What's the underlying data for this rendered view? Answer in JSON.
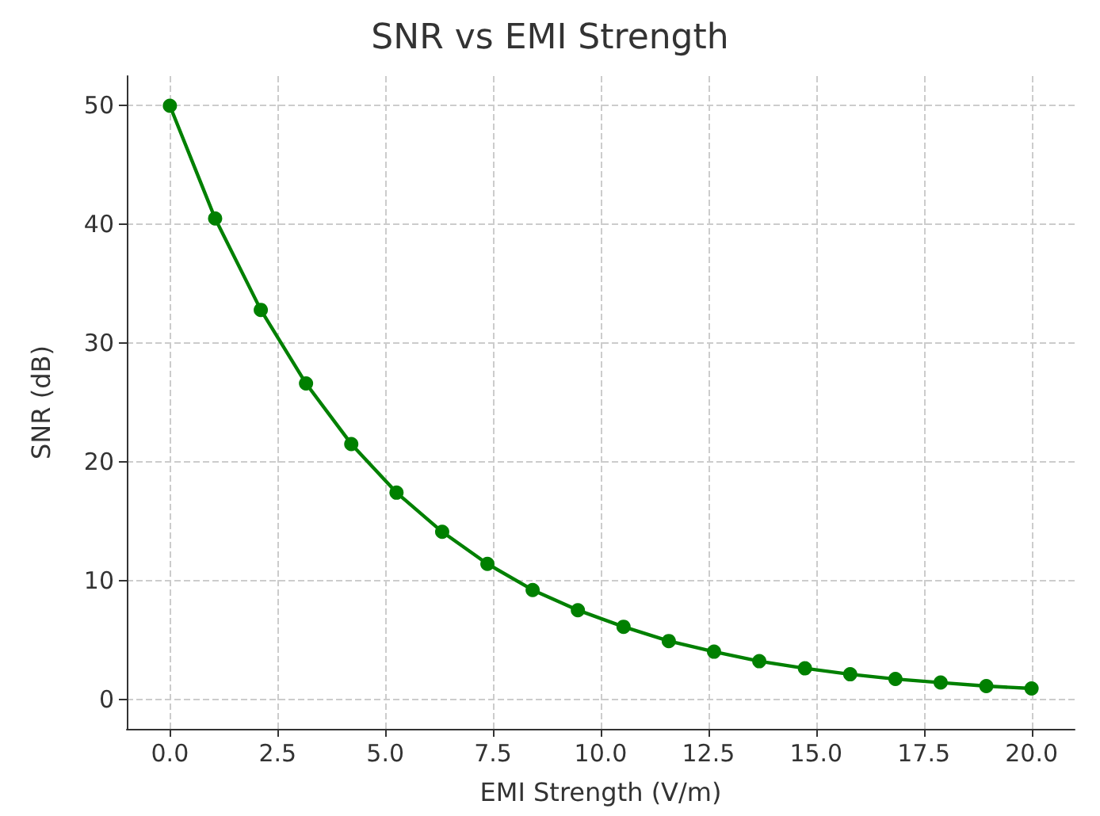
{
  "chart_data": {
    "type": "line",
    "title": "SNR vs EMI Strength",
    "xlabel": "EMI Strength (V/m)",
    "ylabel": "SNR (dB)",
    "x": [
      0,
      1.05,
      2.11,
      3.16,
      4.21,
      5.26,
      6.32,
      7.37,
      8.42,
      9.47,
      10.53,
      11.58,
      12.63,
      13.68,
      14.74,
      15.79,
      16.84,
      17.89,
      18.95,
      20
    ],
    "series": [
      {
        "color": "#008000",
        "values": [
          50,
          40.5,
          32.8,
          26.6,
          21.5,
          17.4,
          14.1,
          11.4,
          9.2,
          7.5,
          6.1,
          4.9,
          4.0,
          3.2,
          2.6,
          2.1,
          1.7,
          1.4,
          1.1,
          0.9
        ]
      }
    ],
    "xlim": [
      -1,
      21
    ],
    "xticks": [
      {
        "value": 0,
        "label": "0.0"
      },
      {
        "value": 2.5,
        "label": "2.5"
      },
      {
        "value": 5,
        "label": "5.0"
      },
      {
        "value": 7.5,
        "label": "7.5"
      },
      {
        "value": 10,
        "label": "10.0"
      },
      {
        "value": 12.5,
        "label": "12.5"
      },
      {
        "value": 15,
        "label": "15.0"
      },
      {
        "value": 17.5,
        "label": "17.5"
      },
      {
        "value": 20,
        "label": "20.0"
      }
    ],
    "ylim": [
      -2.5,
      52.5
    ],
    "yticks": [
      0,
      10,
      20,
      30,
      40,
      50
    ],
    "grid": true,
    "marker": "circle",
    "line_style": "solid"
  }
}
